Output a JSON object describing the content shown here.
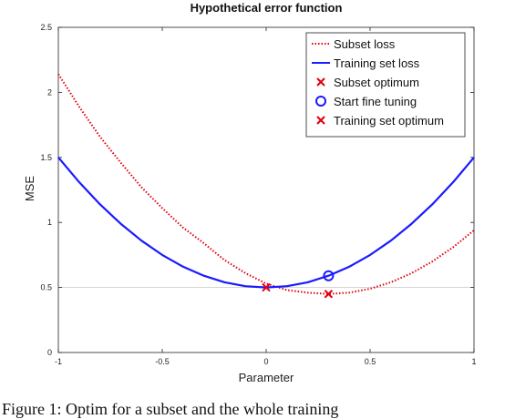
{
  "caption": "Figure 1: Optim for a subset and the whole training",
  "chart_data": {
    "type": "line",
    "title": "Hypothetical error function",
    "xlabel": "Parameter",
    "ylabel": "MSE",
    "xlim": [
      -1,
      1
    ],
    "ylim": [
      0,
      2.5
    ],
    "x_ticks": [
      -1,
      -0.5,
      0,
      0.5,
      1
    ],
    "x_tick_labels": [
      "-1",
      "-0.5",
      "0",
      "0.5",
      "1"
    ],
    "y_ticks": [
      0,
      0.5,
      1,
      1.5,
      2,
      2.5
    ],
    "y_tick_labels": [
      "0",
      "0.5",
      "1",
      "1.5",
      "2",
      "2.5"
    ],
    "reference_line_y": 0.5,
    "legend_position": "top-right",
    "series": [
      {
        "name": "Subset loss",
        "style": "dotted",
        "color": "#e0000f",
        "x": [
          -1,
          -0.9,
          -0.8,
          -0.7,
          -0.6,
          -0.5,
          -0.4,
          -0.3,
          -0.2,
          -0.1,
          0,
          0.1,
          0.2,
          0.3,
          0.4,
          0.5,
          0.6,
          0.7,
          0.8,
          0.9,
          1
        ],
        "values": [
          2.14,
          1.89,
          1.66,
          1.46,
          1.27,
          1.11,
          0.96,
          0.84,
          0.71,
          0.61,
          0.53,
          0.48,
          0.46,
          0.45,
          0.46,
          0.49,
          0.54,
          0.61,
          0.7,
          0.81,
          0.94
        ]
      },
      {
        "name": "Training set loss",
        "style": "solid",
        "color": "#1a1aff",
        "x": [
          -1,
          -0.9,
          -0.8,
          -0.7,
          -0.6,
          -0.5,
          -0.4,
          -0.3,
          -0.2,
          -0.1,
          0,
          0.1,
          0.2,
          0.3,
          0.4,
          0.5,
          0.6,
          0.7,
          0.8,
          0.9,
          1
        ],
        "values": [
          1.5,
          1.31,
          1.14,
          0.99,
          0.86,
          0.75,
          0.66,
          0.59,
          0.54,
          0.51,
          0.5,
          0.51,
          0.54,
          0.59,
          0.66,
          0.75,
          0.86,
          0.99,
          1.14,
          1.31,
          1.5
        ]
      }
    ],
    "markers": [
      {
        "name": "Subset optimum",
        "marker": "x",
        "color": "#e0000f",
        "x": 0.3,
        "y": 0.45
      },
      {
        "name": "Start fine tuning",
        "marker": "o",
        "color": "#1a1aff",
        "x": 0.3,
        "y": 0.59
      },
      {
        "name": "Training set optimum",
        "marker": "x",
        "color": "#e0000f",
        "x": 0,
        "y": 0.5
      }
    ]
  }
}
